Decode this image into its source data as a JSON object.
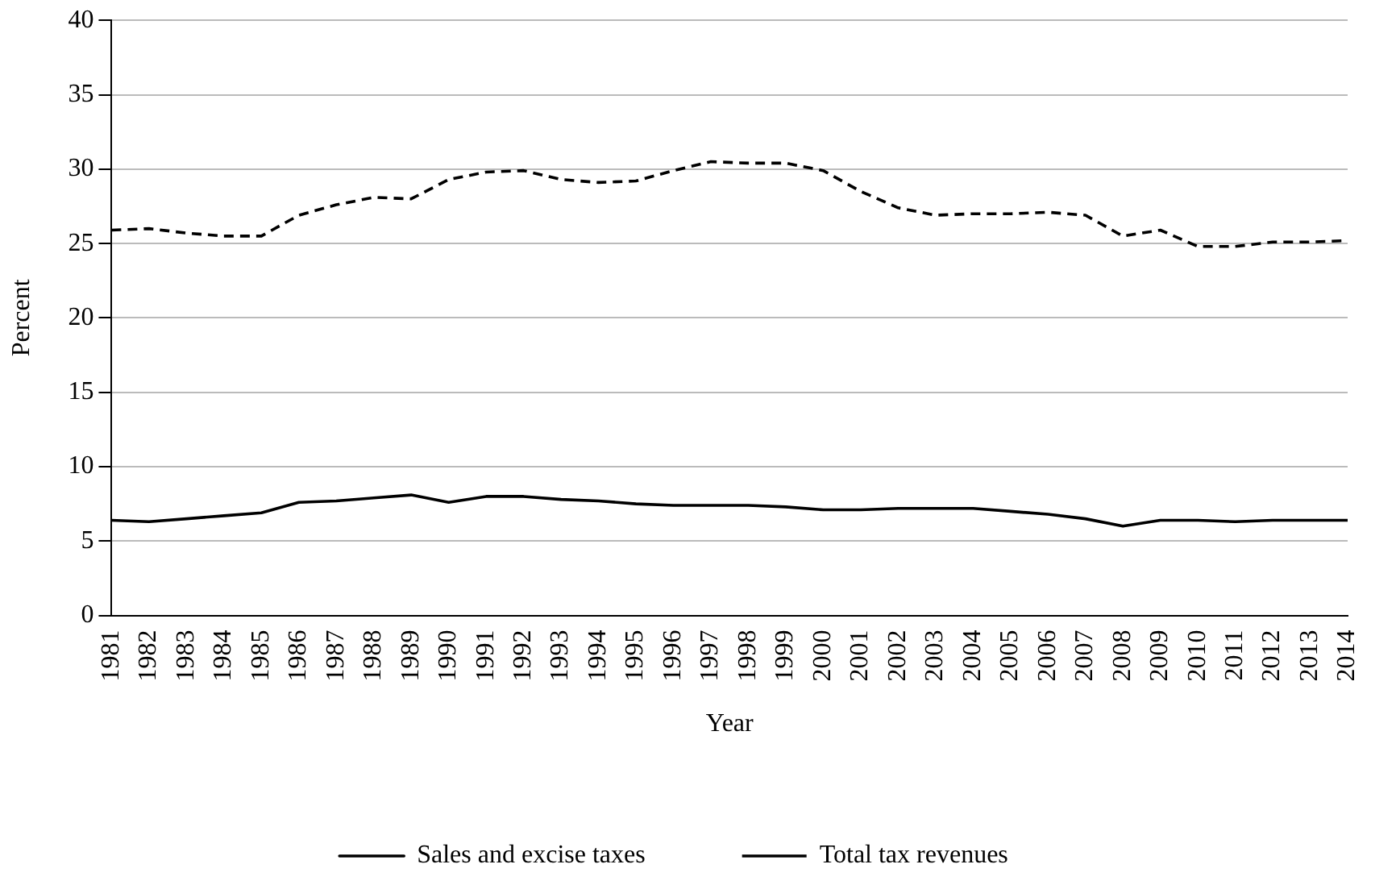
{
  "chart_data": {
    "type": "line",
    "xlabel": "Year",
    "ylabel": "Percent",
    "categories": [
      "1981",
      "1982",
      "1983",
      "1984",
      "1985",
      "1986",
      "1987",
      "1988",
      "1989",
      "1990",
      "1991",
      "1992",
      "1993",
      "1994",
      "1995",
      "1996",
      "1997",
      "1998",
      "1999",
      "2000",
      "2001",
      "2002",
      "2003",
      "2004",
      "2005",
      "2006",
      "2007",
      "2008",
      "2009",
      "2010",
      "2011",
      "2012",
      "2013",
      "2014"
    ],
    "series": [
      {
        "name": "Sales and excise taxes",
        "color": "#000000",
        "line_style": "solid",
        "values": [
          6.4,
          6.3,
          6.5,
          6.7,
          6.9,
          7.6,
          7.7,
          7.9,
          8.1,
          7.6,
          8.0,
          8.0,
          7.8,
          7.7,
          7.5,
          7.4,
          7.4,
          7.4,
          7.3,
          7.1,
          7.1,
          7.2,
          7.2,
          7.2,
          7.0,
          6.8,
          6.5,
          6.0,
          6.4,
          6.4,
          6.3,
          6.4,
          6.4,
          6.4
        ]
      },
      {
        "name": "Total tax revenues",
        "color": "#000000",
        "line_style": "dashed",
        "values": [
          25.9,
          26.0,
          25.7,
          25.5,
          25.5,
          26.9,
          27.6,
          28.1,
          28.0,
          29.3,
          29.8,
          29.9,
          29.3,
          29.1,
          29.2,
          29.9,
          30.5,
          30.4,
          30.4,
          29.9,
          28.5,
          27.4,
          26.9,
          27.0,
          27.0,
          27.1,
          26.9,
          25.5,
          25.9,
          24.8,
          24.8,
          25.1,
          25.1,
          25.2
        ]
      }
    ],
    "ylim": [
      0,
      40
    ],
    "yticks": [
      0,
      5,
      10,
      15,
      20,
      25,
      30,
      35,
      40
    ],
    "grid": "y",
    "legend": "bottom",
    "marker": "none"
  }
}
